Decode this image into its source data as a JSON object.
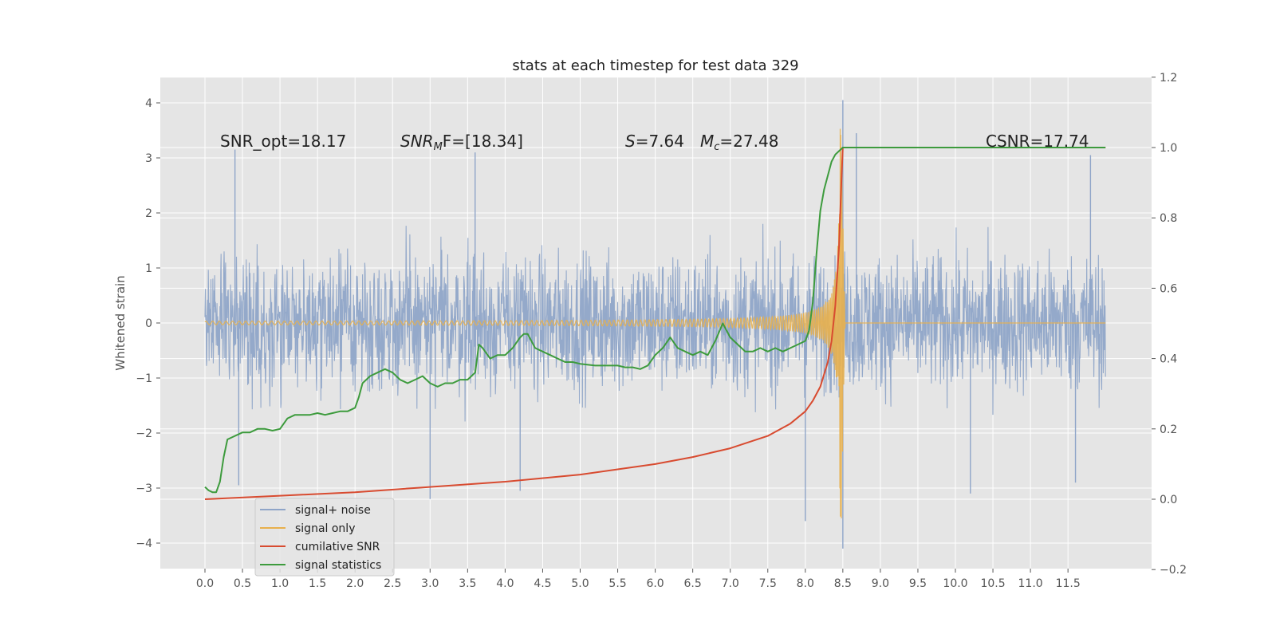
{
  "chart_data": {
    "type": "line",
    "title": "stats at each timestep for test data 329",
    "ylabel": "Whitened strain",
    "xlabel": "",
    "xlim": [
      -0.6,
      12.6
    ],
    "ylim": [
      -4.45,
      4.45
    ],
    "y2lim": [
      -0.2,
      1.2
    ],
    "grid": true,
    "background": "#e5e5e5",
    "x_ticks": [
      "0.0",
      "0.5",
      "1.0",
      "1.5",
      "2.0",
      "2.5",
      "3.0",
      "3.5",
      "4.0",
      "4.5",
      "5.0",
      "5.5",
      "6.0",
      "6.5",
      "7.0",
      "7.5",
      "8.0",
      "8.5",
      "9.0",
      "9.5",
      "10.0",
      "10.5",
      "11.0",
      "11.5"
    ],
    "y_ticks": [
      "4",
      "3",
      "2",
      "1",
      "0",
      "−1",
      "−2",
      "−3",
      "−4"
    ],
    "y2_ticks": [
      "1.2",
      "1.0",
      "0.8",
      "0.6",
      "0.4",
      "0.2",
      "0.0",
      "−0.2"
    ],
    "annotations": {
      "snr_opt": "SNR_opt=18.17",
      "snr_mf_main": "SNR",
      "snr_mf_sub": "M",
      "snr_mf_rest": "F=[18.34]",
      "s_sym": "S",
      "s_val": "=7.64",
      "mc_sym": "M",
      "mc_sub": "c",
      "mc_val": "=27.48",
      "csnr": "CSNR=17.74"
    },
    "series": [
      {
        "name": "signal+ noise",
        "color": "#8fa5c8",
        "axis": "left",
        "description_of_shape": "dense noise band between about -1.9 and 2.0, spikes to 4.05 near x=8.5",
        "envelope": {
          "x_start": 0.0,
          "x_end": 12.0,
          "upper_typical": 1.95,
          "lower_typical": -1.95
        },
        "spikes": [
          [
            0.4,
            3.15
          ],
          [
            3.6,
            3.1
          ],
          [
            8.5,
            4.05
          ],
          [
            8.68,
            3.45
          ],
          [
            11.8,
            3.05
          ],
          [
            8.5,
            -4.1
          ],
          [
            8.0,
            -3.6
          ],
          [
            10.2,
            -3.1
          ],
          [
            11.6,
            -2.9
          ],
          [
            0.45,
            -2.95
          ],
          [
            3.0,
            -3.2
          ],
          [
            4.2,
            -3.05
          ]
        ]
      },
      {
        "name": "signal only",
        "color": "#e8b04c",
        "axis": "left",
        "chirp": {
          "x_start": 0.0,
          "x_merge": 8.48,
          "x_end": 12.0,
          "peak_amp": 3.55,
          "min_amp": 0.02
        }
      },
      {
        "name": "cumilative SNR",
        "color": "#d84b30",
        "axis": "right",
        "x": [
          0.0,
          1.0,
          2.0,
          3.0,
          4.0,
          5.0,
          5.5,
          6.0,
          6.5,
          7.0,
          7.5,
          7.8,
          8.0,
          8.1,
          8.2,
          8.3,
          8.35,
          8.4,
          8.45,
          8.48,
          8.5,
          12.0
        ],
        "y": [
          0.0,
          0.01,
          0.02,
          0.035,
          0.05,
          0.07,
          0.085,
          0.1,
          0.12,
          0.145,
          0.18,
          0.215,
          0.25,
          0.28,
          0.32,
          0.39,
          0.45,
          0.55,
          0.72,
          0.9,
          1.0,
          1.0
        ]
      },
      {
        "name": "signal statistics",
        "color": "#3d9b3d",
        "axis": "right",
        "x": [
          0.0,
          0.05,
          0.1,
          0.15,
          0.2,
          0.25,
          0.3,
          0.4,
          0.5,
          0.6,
          0.7,
          0.8,
          0.9,
          1.0,
          1.1,
          1.2,
          1.3,
          1.4,
          1.5,
          1.6,
          1.7,
          1.8,
          1.9,
          2.0,
          2.05,
          2.1,
          2.15,
          2.2,
          2.3,
          2.4,
          2.5,
          2.6,
          2.7,
          2.8,
          2.9,
          3.0,
          3.1,
          3.2,
          3.3,
          3.4,
          3.5,
          3.6,
          3.65,
          3.7,
          3.8,
          3.9,
          4.0,
          4.1,
          4.2,
          4.25,
          4.3,
          4.35,
          4.4,
          4.5,
          4.6,
          4.7,
          4.8,
          4.9,
          5.0,
          5.2,
          5.4,
          5.5,
          5.6,
          5.7,
          5.8,
          5.9,
          6.0,
          6.1,
          6.2,
          6.3,
          6.4,
          6.5,
          6.6,
          6.7,
          6.8,
          6.9,
          7.0,
          7.1,
          7.2,
          7.3,
          7.4,
          7.5,
          7.6,
          7.7,
          7.8,
          7.9,
          8.0,
          8.05,
          8.1,
          8.15,
          8.2,
          8.25,
          8.3,
          8.35,
          8.4,
          8.45,
          8.5,
          8.6,
          12.0
        ],
        "y": [
          0.035,
          0.025,
          0.02,
          0.02,
          0.05,
          0.12,
          0.17,
          0.18,
          0.19,
          0.19,
          0.2,
          0.2,
          0.195,
          0.2,
          0.23,
          0.24,
          0.24,
          0.24,
          0.245,
          0.24,
          0.245,
          0.25,
          0.25,
          0.26,
          0.29,
          0.33,
          0.34,
          0.35,
          0.36,
          0.37,
          0.36,
          0.34,
          0.33,
          0.34,
          0.35,
          0.33,
          0.32,
          0.33,
          0.33,
          0.34,
          0.34,
          0.36,
          0.44,
          0.43,
          0.4,
          0.41,
          0.41,
          0.43,
          0.46,
          0.47,
          0.47,
          0.45,
          0.43,
          0.42,
          0.41,
          0.4,
          0.39,
          0.39,
          0.385,
          0.38,
          0.38,
          0.38,
          0.375,
          0.375,
          0.37,
          0.38,
          0.41,
          0.43,
          0.46,
          0.43,
          0.42,
          0.41,
          0.42,
          0.41,
          0.45,
          0.5,
          0.46,
          0.44,
          0.42,
          0.42,
          0.43,
          0.42,
          0.43,
          0.42,
          0.43,
          0.44,
          0.45,
          0.48,
          0.56,
          0.7,
          0.82,
          0.88,
          0.92,
          0.96,
          0.98,
          0.99,
          1.0,
          1.0,
          1.0
        ]
      }
    ],
    "legend": {
      "placement": "lower-left",
      "entries": [
        "signal+ noise",
        "signal only",
        "cumilative SNR",
        "signal statistics"
      ]
    }
  }
}
